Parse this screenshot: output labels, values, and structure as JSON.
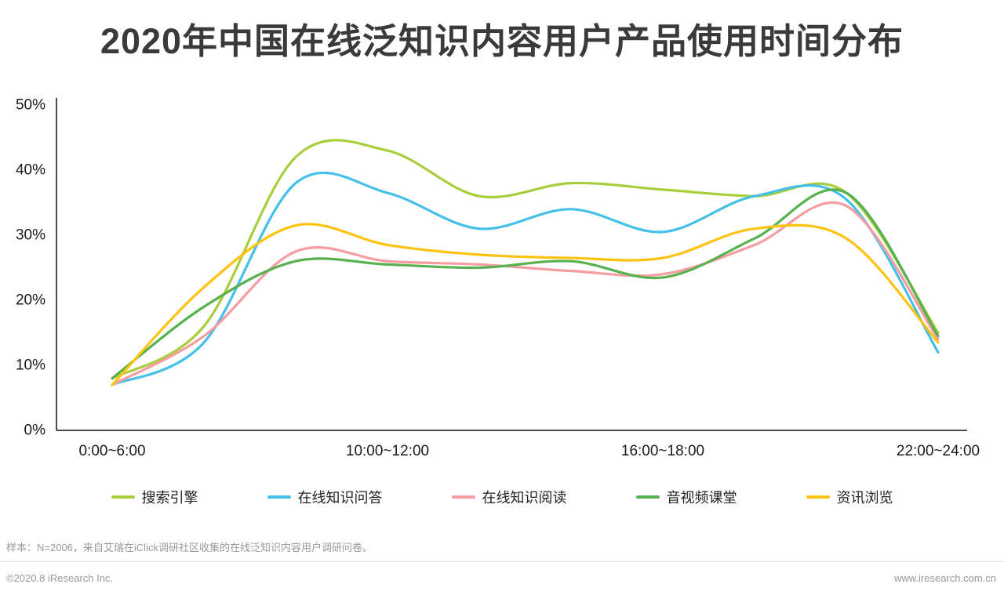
{
  "page": {
    "title": "2020年中国在线泛知识内容用户产品使用时间分布",
    "footnote": "样本：N=2006，来自艾瑞在iClick调研社区收集的在线泛知识内容用户调研问卷。",
    "copyright": "©2020.8 iResearch Inc.",
    "website": "www.iresearch.com.cn"
  },
  "chart_data": {
    "type": "line",
    "smooth": true,
    "grid": false,
    "legend_position": "bottom",
    "title": "2020年中国在线泛知识内容用户产品使用时间分布",
    "xlabel": "",
    "ylabel": "",
    "ylim": [
      0,
      50
    ],
    "y_ticks": [
      0,
      10,
      20,
      30,
      40,
      50
    ],
    "y_tick_labels": [
      "0%",
      "10%",
      "20%",
      "30%",
      "40%",
      "50%"
    ],
    "x_labels": [
      "0:00~6:00",
      "",
      "",
      "10:00~12:00",
      "",
      "",
      "16:00~18:00",
      "",
      "",
      "22:00~24:00"
    ],
    "series": [
      {
        "name": "搜索引擎",
        "key": "search-engine",
        "color": "#A8CE3C",
        "values": [
          8,
          16,
          42,
          43,
          36,
          38,
          37,
          36,
          36.5,
          15
        ]
      },
      {
        "name": "在线知识问答",
        "key": "online-qa",
        "color": "#45C0E8",
        "values": [
          7,
          13.5,
          38,
          36.5,
          31,
          34,
          30.5,
          36,
          35.5,
          12
        ]
      },
      {
        "name": "在线知识阅读",
        "key": "online-reading",
        "color": "#F59DA1",
        "values": [
          7,
          14.5,
          27.5,
          26,
          25.5,
          24.5,
          24,
          28.5,
          34.5,
          14
        ]
      },
      {
        "name": "音视频课堂",
        "key": "av-classroom",
        "color": "#57B14E",
        "values": [
          8,
          19,
          26,
          25.5,
          25,
          26,
          23.5,
          29.5,
          36.5,
          14.5
        ]
      },
      {
        "name": "资讯浏览",
        "key": "news-browsing",
        "color": "#FFC20E",
        "values": [
          7,
          22,
          31.5,
          28.5,
          27,
          26.5,
          26.5,
          31,
          29.5,
          13.5
        ]
      }
    ]
  }
}
